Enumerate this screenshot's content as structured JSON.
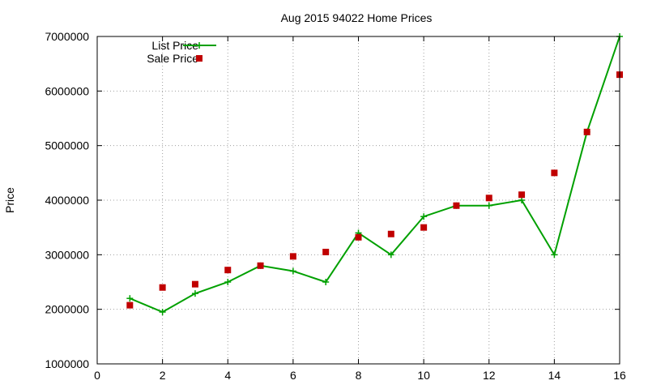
{
  "chart_data": {
    "type": "line",
    "title": "Aug 2015 94022 Home Prices",
    "xlabel": "",
    "ylabel": "Price",
    "xlim": [
      0,
      16
    ],
    "ylim": [
      1000000,
      7000000
    ],
    "x_ticks": [
      0,
      2,
      4,
      6,
      8,
      10,
      12,
      14,
      16
    ],
    "y_ticks": [
      1000000,
      2000000,
      3000000,
      4000000,
      5000000,
      6000000,
      7000000
    ],
    "x_tick_labels": [
      "0",
      "2",
      "4",
      "6",
      "8",
      "10",
      "12",
      "14",
      "16"
    ],
    "y_tick_labels": [
      "1000000",
      "2000000",
      "3000000",
      "4000000",
      "5000000",
      "6000000",
      "7000000"
    ],
    "grid": true,
    "legend_position": "top-left",
    "series": [
      {
        "name": "List Price",
        "mark": "line+cross",
        "color": "#00a000",
        "points": [
          [
            1,
            2200000
          ],
          [
            2,
            1950000
          ],
          [
            3,
            2290000
          ],
          [
            4,
            2500000
          ],
          [
            5,
            2800000
          ],
          [
            6,
            2700000
          ],
          [
            7,
            2500000
          ],
          [
            8,
            3400000
          ],
          [
            9,
            3000000
          ],
          [
            10,
            3700000
          ],
          [
            11,
            3900000
          ],
          [
            12,
            3900000
          ],
          [
            13,
            4000000
          ],
          [
            14,
            3000000
          ],
          [
            15,
            5250000
          ],
          [
            16,
            7000000
          ]
        ]
      },
      {
        "name": "Sale Price",
        "mark": "square",
        "color": "#c00000",
        "points": [
          [
            1,
            2075000
          ],
          [
            2,
            2400000
          ],
          [
            3,
            2460000
          ],
          [
            4,
            2720000
          ],
          [
            5,
            2800000
          ],
          [
            6,
            2970000
          ],
          [
            7,
            3050000
          ],
          [
            8,
            3320000
          ],
          [
            9,
            3380000
          ],
          [
            10,
            3500000
          ],
          [
            11,
            3900000
          ],
          [
            12,
            4040000
          ],
          [
            13,
            4100000
          ],
          [
            14,
            4500000
          ],
          [
            15,
            5250000
          ],
          [
            16,
            6300000
          ]
        ]
      }
    ]
  }
}
